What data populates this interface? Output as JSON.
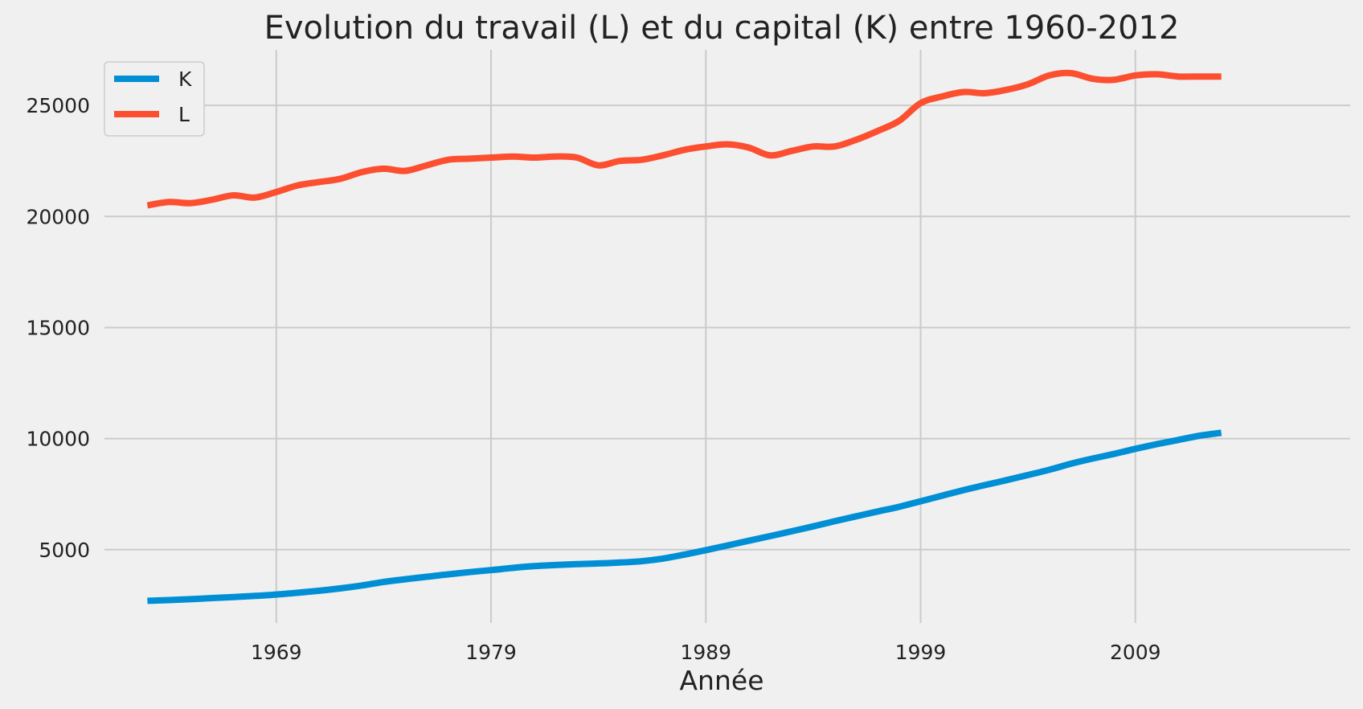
{
  "chart_data": {
    "type": "line",
    "title": "Evolution du travail (L) et du capital (K) entre 1960-2012",
    "xlabel": "Année",
    "ylabel": "",
    "x": [
      1963,
      1964,
      1965,
      1966,
      1967,
      1968,
      1969,
      1970,
      1971,
      1972,
      1973,
      1974,
      1975,
      1976,
      1977,
      1978,
      1979,
      1980,
      1981,
      1982,
      1983,
      1984,
      1985,
      1986,
      1987,
      1988,
      1989,
      1990,
      1991,
      1992,
      1993,
      1994,
      1995,
      1996,
      1997,
      1998,
      1999,
      2000,
      2001,
      2002,
      2003,
      2004,
      2005,
      2006,
      2007,
      2008,
      2009,
      2010,
      2011,
      2012,
      2013
    ],
    "xticks": [
      "1969",
      "1979",
      "1989",
      "1999",
      "2009"
    ],
    "xtick_values": [
      1969,
      1979,
      1989,
      1999,
      2009
    ],
    "yticks": [
      "5000",
      "10000",
      "15000",
      "20000",
      "25000"
    ],
    "ytick_values": [
      5000,
      10000,
      15000,
      20000,
      25000
    ],
    "xlim": [
      1961,
      2019
    ],
    "ylim": [
      1700,
      27500
    ],
    "grid": true,
    "legend_position": "top-left",
    "series": [
      {
        "name": "K",
        "color": "#008fd5",
        "values": [
          2700,
          2730,
          2770,
          2820,
          2870,
          2920,
          2980,
          3060,
          3150,
          3260,
          3390,
          3550,
          3670,
          3780,
          3890,
          3990,
          4080,
          4180,
          4260,
          4310,
          4350,
          4380,
          4420,
          4480,
          4600,
          4780,
          4980,
          5190,
          5400,
          5610,
          5830,
          6050,
          6280,
          6500,
          6720,
          6930,
          7180,
          7430,
          7680,
          7910,
          8130,
          8360,
          8600,
          8870,
          9100,
          9310,
          9540,
          9750,
          9940,
          10130,
          10260
        ]
      },
      {
        "name": "L",
        "color": "#fc4f30",
        "values": [
          20500,
          20650,
          20600,
          20750,
          20950,
          20850,
          21100,
          21400,
          21550,
          21700,
          22000,
          22150,
          22050,
          22300,
          22550,
          22600,
          22650,
          22700,
          22650,
          22700,
          22650,
          22300,
          22500,
          22550,
          22750,
          23000,
          23150,
          23250,
          23100,
          22750,
          22950,
          23150,
          23150,
          23450,
          23850,
          24300,
          25100,
          25400,
          25600,
          25550,
          25700,
          25950,
          26350,
          26450,
          26200,
          26150,
          26350,
          26400,
          26300,
          26300,
          26300
        ]
      }
    ]
  }
}
